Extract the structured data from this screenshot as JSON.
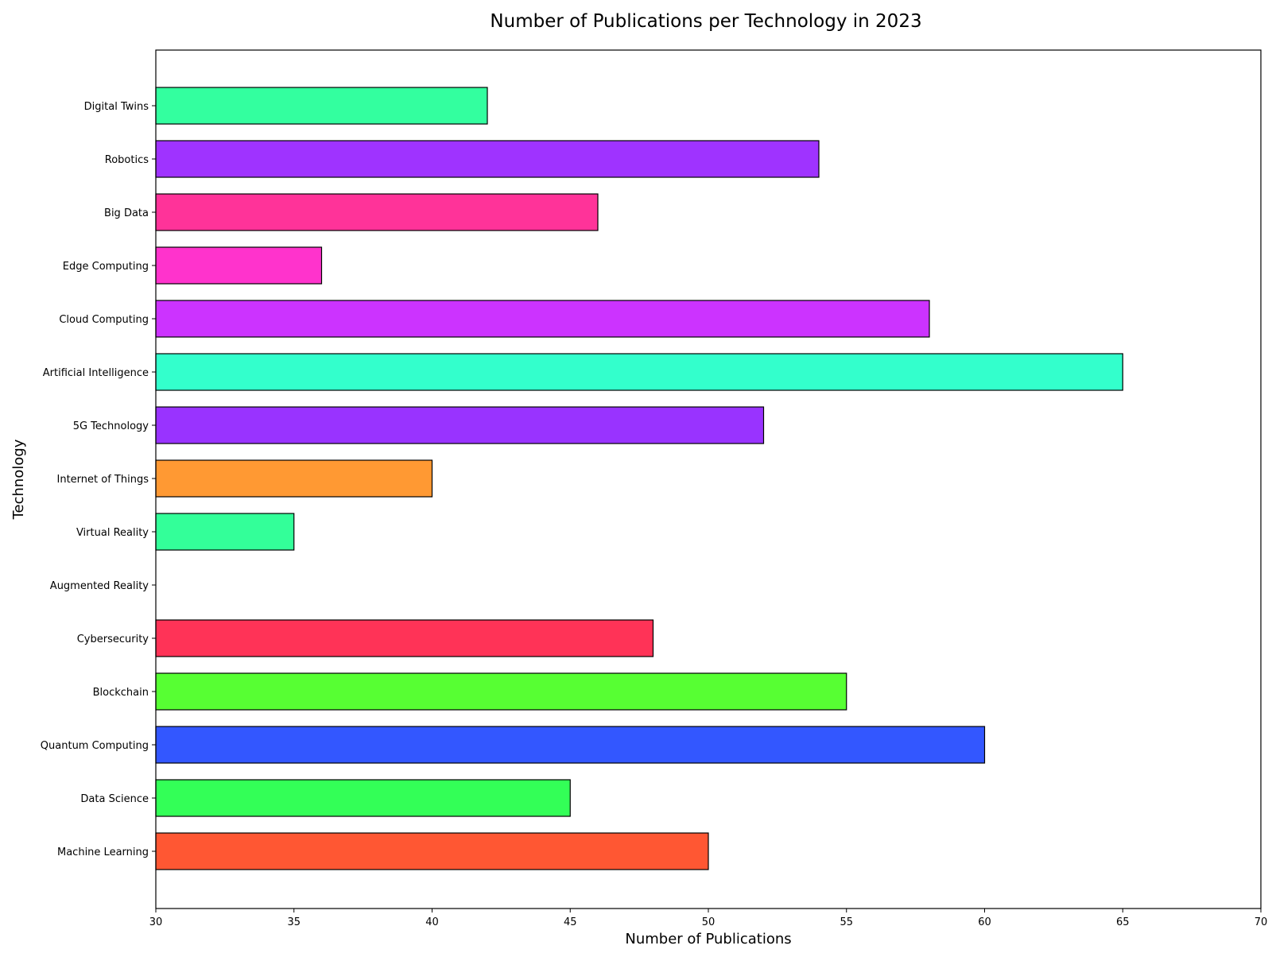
{
  "chart_data": {
    "type": "bar",
    "orientation": "horizontal",
    "title": "Number of Publications per Technology in 2023",
    "xlabel": "Number of Publications",
    "ylabel": "Technology",
    "xlim": [
      30,
      70
    ],
    "xticks": [
      "30",
      "35",
      "40",
      "45",
      "50",
      "55",
      "60",
      "65",
      "70"
    ],
    "grid": false,
    "legend": "none",
    "categories": [
      "Machine Learning",
      "Data Science",
      "Quantum Computing",
      "Blockchain",
      "Cybersecurity",
      "Augmented Reality",
      "Virtual Reality",
      "Internet of Things",
      "5G Technology",
      "Artificial Intelligence",
      "Cloud Computing",
      "Edge Computing",
      "Big Data",
      "Robotics",
      "Digital Twins"
    ],
    "values": [
      50,
      45,
      60,
      55,
      48,
      30,
      35,
      40,
      52,
      65,
      58,
      36,
      46,
      54,
      42
    ],
    "colors": [
      "#ff5733",
      "#33ff57",
      "#3357ff",
      "#57ff33",
      "#ff3357",
      "#33ffa0",
      "#33ff99",
      "#ff9933",
      "#9933ff",
      "#33ffcc",
      "#cc33ff",
      "#ff33cc",
      "#ff3399",
      "#9f33ff",
      "#33ff9f"
    ],
    "edgecolor": "#000000"
  }
}
